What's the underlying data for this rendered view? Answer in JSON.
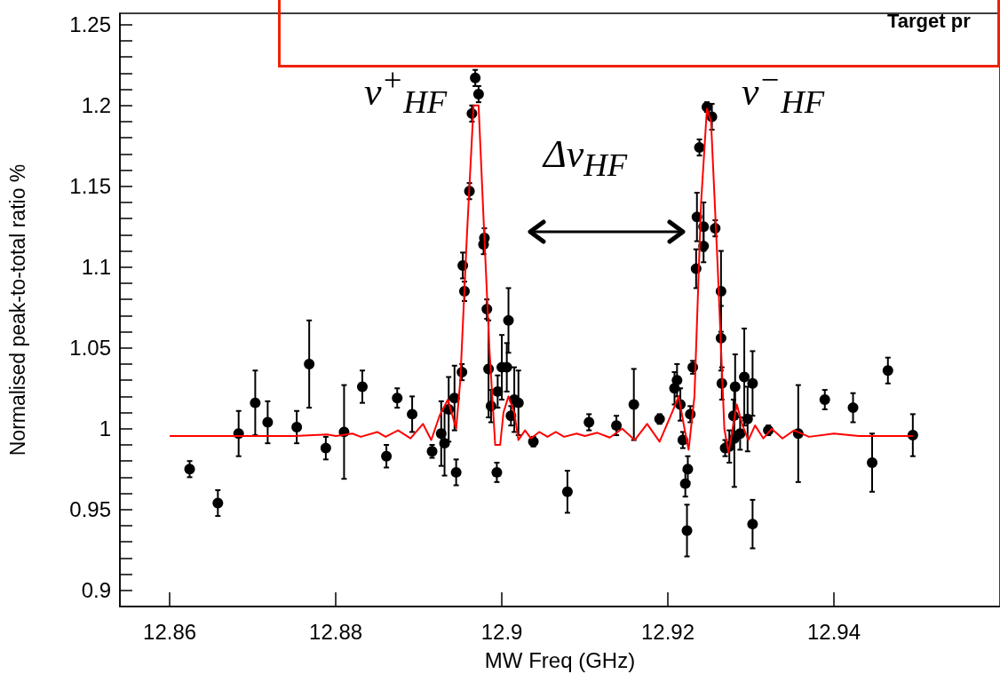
{
  "chart_data": {
    "type": "scatter",
    "xlabel": "MW Freq (GHz)",
    "ylabel": "Normalised peak-to-total ratio %",
    "xlim": [
      12.854,
      12.96
    ],
    "xticks": [
      12.86,
      12.88,
      12.9,
      12.92,
      12.94
    ],
    "ylim": [
      0.89,
      1.257
    ],
    "yticks": [
      0.9,
      {
        "value": 0.91,
        "label": null
      },
      {
        "value": 0.92,
        "label": null
      },
      {
        "value": 0.93,
        "label": null
      },
      {
        "value": 0.94,
        "label": null
      },
      0.95,
      {
        "value": 0.96,
        "label": null
      },
      {
        "value": 0.97,
        "label": null
      },
      {
        "value": 0.98,
        "label": null
      },
      {
        "value": 0.99,
        "label": null
      },
      1,
      {
        "value": 1.01,
        "label": null
      },
      {
        "value": 1.02,
        "label": null
      },
      {
        "value": 1.03,
        "label": null
      },
      {
        "value": 1.04,
        "label": null
      },
      1.05,
      {
        "value": 1.06,
        "label": null
      },
      {
        "value": 1.07,
        "label": null
      },
      {
        "value": 1.08,
        "label": null
      },
      {
        "value": 1.09,
        "label": null
      },
      1.1,
      {
        "value": 1.11,
        "label": null
      },
      {
        "value": 1.12,
        "label": null
      },
      {
        "value": 1.13,
        "label": null
      },
      {
        "value": 1.14,
        "label": null
      },
      1.15,
      {
        "value": 1.16,
        "label": null
      },
      {
        "value": 1.17,
        "label": null
      },
      {
        "value": 1.18,
        "label": null
      },
      {
        "value": 1.19,
        "label": null
      },
      1.2,
      {
        "value": 1.21,
        "label": null
      },
      {
        "value": 1.22,
        "label": null
      },
      {
        "value": 1.23,
        "label": null
      },
      {
        "value": 1.24,
        "label": null
      },
      1.25
    ],
    "grid": false,
    "annotations": [
      "ν$^{+}$$_{HF}$",
      "ν$^{−}$$_{HF}$",
      "Δν$_{HF}$",
      "Target pr"
    ],
    "series": [
      {
        "color": "#000000",
        "marker": "circle",
        "x": [
          12.8624,
          12.8658,
          12.8683,
          12.8703,
          12.8718,
          12.8753,
          12.8768,
          12.8788,
          12.881,
          12.8832,
          12.8861,
          12.8874,
          12.8892,
          12.8916,
          12.8927,
          12.8931,
          12.8936,
          12.8943,
          12.8945,
          12.8952,
          12.8955,
          12.8953,
          12.8961,
          12.8964,
          12.8968,
          12.8972,
          12.8979,
          12.8978,
          12.8982,
          12.8984,
          12.8987,
          12.8994,
          12.8995,
          12.9,
          12.9008,
          12.9006,
          12.9015,
          12.902,
          12.9011,
          12.9038,
          12.9079,
          12.9105,
          12.9138,
          12.9159,
          12.919,
          12.9208,
          12.9211,
          12.9215,
          12.9218,
          12.9224,
          12.9221,
          12.9223,
          12.9227,
          12.923,
          12.9234,
          12.9235,
          12.9243,
          12.9243,
          12.9238,
          12.9247,
          12.9253,
          12.9257,
          12.9264,
          12.9264,
          12.9265,
          12.9269,
          12.9274,
          12.9279,
          12.9281,
          12.928,
          12.9287,
          12.9292,
          12.9296,
          12.9302,
          12.9302,
          12.9321,
          12.9357,
          12.9389,
          12.9423,
          12.9446,
          12.9465,
          12.9495
        ],
        "values": [
          0.975,
          0.954,
          0.997,
          1.016,
          1.004,
          1.001,
          1.04,
          0.988,
          0.998,
          1.026,
          0.983,
          1.019,
          1.009,
          0.986,
          0.997,
          0.991,
          1.012,
          1.019,
          0.973,
          1.035,
          1.085,
          1.101,
          1.147,
          1.195,
          1.217,
          1.207,
          1.118,
          1.114,
          1.074,
          1.037,
          1.014,
          0.973,
          1.023,
          1.038,
          1.067,
          1.038,
          1.018,
          1.016,
          1.008,
          0.992,
          0.961,
          1.004,
          1.002,
          1.015,
          1.006,
          1.025,
          1.03,
          1.015,
          0.993,
          0.975,
          0.966,
          0.937,
          1.009,
          1.038,
          1.099,
          1.131,
          1.125,
          1.113,
          1.174,
          1.199,
          1.193,
          1.124,
          1.085,
          1.056,
          1.028,
          0.988,
          0.989,
          1.008,
          1.026,
          0.994,
          0.997,
          1.032,
          1.006,
          1.028,
          0.941,
          0.999,
          0.997,
          1.018,
          1.013,
          0.979,
          1.036,
          0.996
        ],
        "errors": [
          0.005,
          0.008,
          0.014,
          0.02,
          0.013,
          0.01,
          0.027,
          0.007,
          0.029,
          0.01,
          0.007,
          0.006,
          0.011,
          0.004,
          0.02,
          0.02,
          0.02,
          0.02,
          0.008,
          0.005,
          0.006,
          0.008,
          0.005,
          0.005,
          0.005,
          0.005,
          0.006,
          0.006,
          0.006,
          0.03,
          0.01,
          0.006,
          0.01,
          0.02,
          0.02,
          0.015,
          0.02,
          0.02,
          0.006,
          0.003,
          0.013,
          0.005,
          0.006,
          0.022,
          0.003,
          0.01,
          0.01,
          0.01,
          0.005,
          0.008,
          0.008,
          0.016,
          0.005,
          0.004,
          0.012,
          0.015,
          0.015,
          0.01,
          0.005,
          0.003,
          0.008,
          0.005,
          0.025,
          0.02,
          0.01,
          0.005,
          0.01,
          0.01,
          0.02,
          0.03,
          0.01,
          0.03,
          0.02,
          0.02,
          0.015,
          0.003,
          0.03,
          0.006,
          0.009,
          0.018,
          0.008,
          0.013
        ]
      },
      {
        "type": "line",
        "color": "#ff0000",
        "marker": "none",
        "x": [
          12.86,
          12.875,
          12.879,
          12.88,
          12.882,
          12.883,
          12.885,
          12.886,
          12.8875,
          12.889,
          12.8905,
          12.8915,
          12.8925,
          12.8935,
          12.8945,
          12.895,
          12.8958,
          12.8966,
          12.8972,
          12.8978,
          12.8985,
          12.8992,
          12.8998,
          12.9002,
          12.9008,
          12.9015,
          12.902,
          12.9028,
          12.9035,
          12.9045,
          12.9055,
          12.9065,
          12.9075,
          12.909,
          12.91,
          12.9115,
          12.913,
          12.9145,
          12.916,
          12.9175,
          12.919,
          12.9205,
          12.9213,
          12.922,
          12.9225,
          12.9232,
          12.924,
          12.9247,
          12.9252,
          12.926,
          12.9268,
          12.9273,
          12.9278,
          12.9283,
          12.929,
          12.9297,
          12.9305,
          12.9315,
          12.9325,
          12.9338,
          12.9352,
          12.937,
          12.94,
          12.943,
          12.9495
        ],
        "values": [
          0.9955,
          0.9955,
          0.9965,
          0.9955,
          0.997,
          0.995,
          0.998,
          0.995,
          0.999,
          0.994,
          1.003,
          0.993,
          1.008,
          1.018,
          1.0,
          1.03,
          1.12,
          1.2,
          1.2,
          1.13,
          1.05,
          0.99,
          0.99,
          1.01,
          1.02,
          1.01,
          0.993,
          0.999,
          0.994,
          0.998,
          0.995,
          0.998,
          0.995,
          0.997,
          0.9955,
          0.9975,
          0.9945,
          1.0,
          0.993,
          1.003,
          0.992,
          1.01,
          1.02,
          1.0,
          0.987,
          1.02,
          1.14,
          1.198,
          1.19,
          1.1,
          1.0,
          0.985,
          1.0,
          1.015,
          1.002,
          0.993,
          1.002,
          0.994,
          1.0,
          0.994,
          0.999,
          0.995,
          0.997,
          0.9955,
          0.9955
        ]
      }
    ]
  }
}
